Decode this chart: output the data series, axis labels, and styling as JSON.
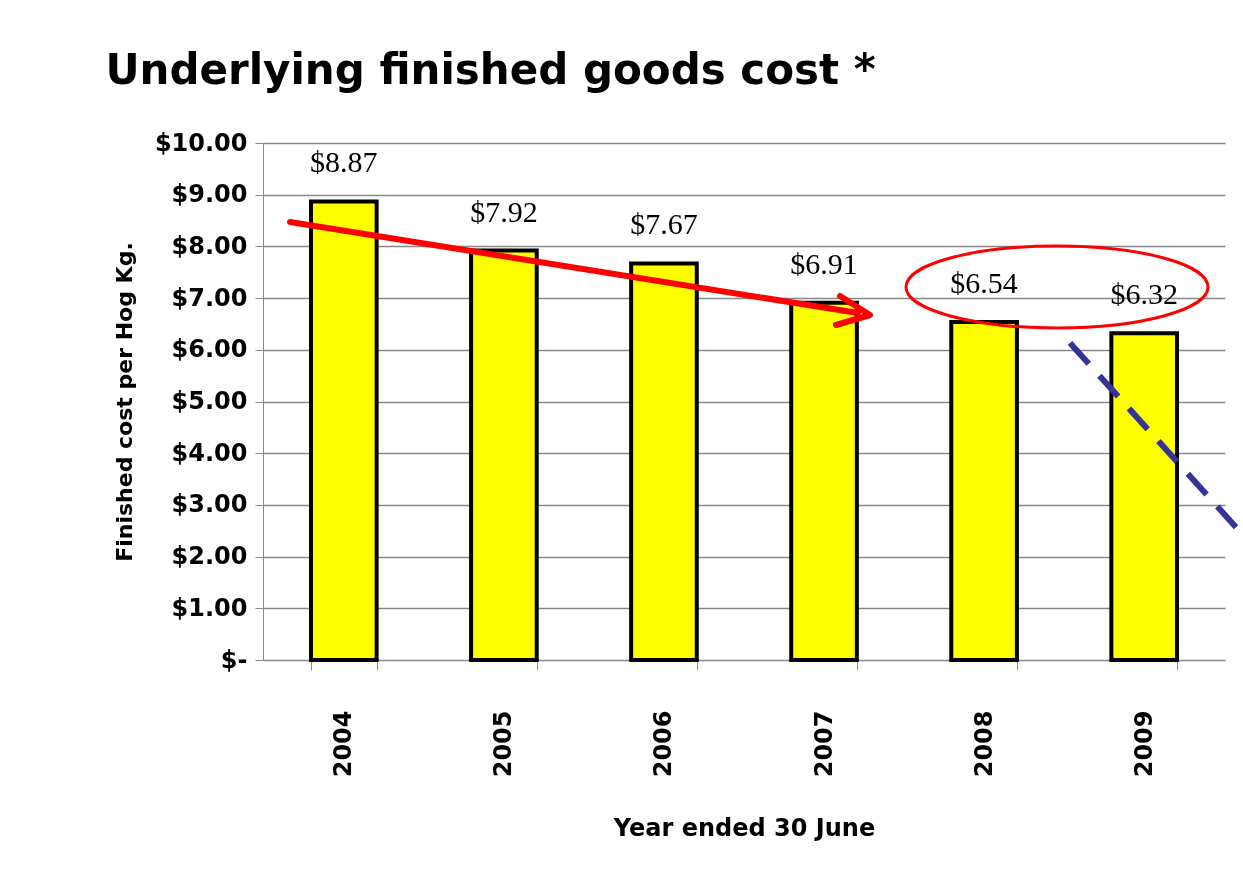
{
  "chart_data": {
    "type": "bar",
    "title": "Underlying finished goods cost *",
    "xlabel": "Year ended 30 June",
    "ylabel": "Finished cost per Hog Kg.",
    "categories": [
      "2004",
      "2005",
      "2006",
      "2007",
      "2008",
      "2009"
    ],
    "values": [
      8.87,
      7.92,
      7.67,
      6.91,
      6.54,
      6.32
    ],
    "value_labels": [
      "$8.87",
      "$7.92",
      "$7.67",
      "$6.91",
      "$6.54",
      "$6.32"
    ],
    "color": "#ffff00",
    "ylim": [
      0,
      10
    ],
    "yticks": [
      {
        "value": 0,
        "label": "$-"
      },
      {
        "value": 1,
        "label": "$1.00"
      },
      {
        "value": 2,
        "label": "$2.00"
      },
      {
        "value": 3,
        "label": "$3.00"
      },
      {
        "value": 4,
        "label": "$4.00"
      },
      {
        "value": 5,
        "label": "$5.00"
      },
      {
        "value": 6,
        "label": "$6.00"
      },
      {
        "value": 7,
        "label": "$7.00"
      },
      {
        "value": 8,
        "label": "$8.00"
      },
      {
        "value": 9,
        "label": "$9.00"
      },
      {
        "value": 10,
        "label": "$10.00"
      }
    ],
    "grid": "y"
  }
}
